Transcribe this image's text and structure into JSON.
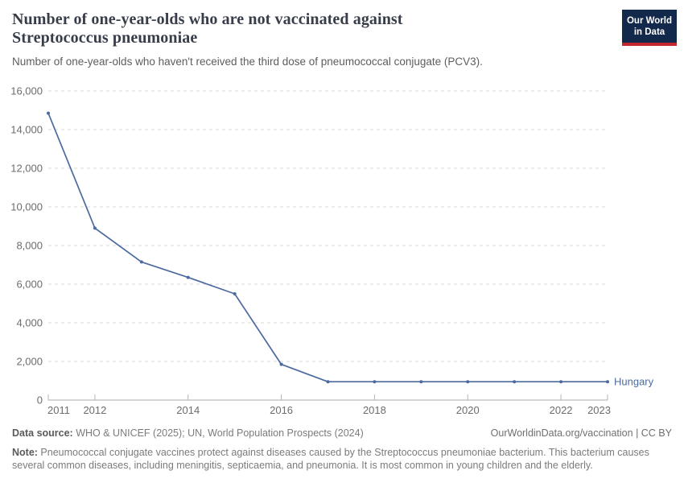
{
  "header": {
    "title_lines": [
      "Number of one-year-olds who are not vaccinated against",
      "Streptococcus pneumoniae"
    ],
    "subtitle": "Number of one-year-olds who haven't received the third dose of pneumococcal conjugate (PCV3).",
    "logo": {
      "line1": "Our World",
      "line2": "in Data",
      "bg_color": "#12294b",
      "accent_color": "#c1272d"
    }
  },
  "chart_data": {
    "type": "line",
    "title": "Number of one-year-olds who are not vaccinated against Streptococcus pneumoniae",
    "subtitle": "Number of one-year-olds who haven't received the third dose of pneumococcal conjugate (PCV3).",
    "series": [
      {
        "name": "Hungary",
        "color": "#4c6a9e",
        "x": [
          2011,
          2012,
          2013,
          2014,
          2015,
          2016,
          2017,
          2018,
          2019,
          2020,
          2021,
          2022,
          2023
        ],
        "values": [
          14850,
          8900,
          7150,
          6350,
          5500,
          1850,
          950,
          950,
          950,
          950,
          950,
          950,
          950
        ]
      }
    ],
    "xlim": [
      2011,
      2023
    ],
    "ylim": [
      0,
      16000
    ],
    "yticks": [
      0,
      2000,
      4000,
      6000,
      8000,
      10000,
      12000,
      14000,
      16000
    ],
    "ytick_labels": [
      "0",
      "2,000",
      "4,000",
      "6,000",
      "8,000",
      "10,000",
      "12,000",
      "14,000",
      "16,000"
    ],
    "xticks": [
      2011,
      2012,
      2014,
      2016,
      2018,
      2020,
      2022,
      2023
    ],
    "xlabel": "",
    "ylabel": "",
    "grid": "horizontal-dashed",
    "legend_position": "end-of-line-label",
    "colors": {
      "grid": "#d9d9d9",
      "axis": "#a8a8a8",
      "tick": "#b5b5b5",
      "tick_label": "#6d6d6d"
    }
  },
  "footer": {
    "data_source_label": "Data source:",
    "data_source": " WHO & UNICEF (2025); UN, World Population Prospects (2024)",
    "link": "OurWorldinData.org/vaccination | CC BY",
    "note_label": "Note:",
    "note": " Pneumococcal conjugate vaccines protect against diseases caused by the Streptococcus pneumoniae bacterium. This bacterium causes several common diseases, including meningitis, septicaemia, and pneumonia. It is most common in young children and the elderly."
  }
}
